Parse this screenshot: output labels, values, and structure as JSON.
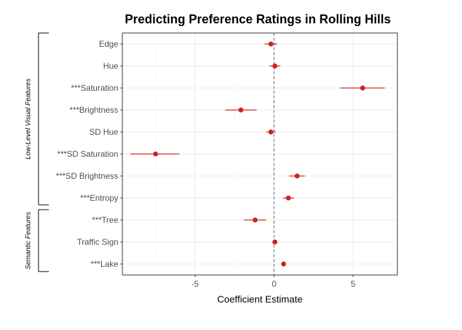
{
  "chart_data": {
    "type": "scatter",
    "subtype": "coefficient-plot",
    "title": "Predicting Preference Ratings in Rolling Hills",
    "xlabel": "Coefficient Estimate",
    "ylabel": "",
    "xlim": [
      -9.6,
      7.8
    ],
    "xticks": [
      -5,
      0,
      5
    ],
    "xtick_labels": [
      "-5",
      "0",
      "5"
    ],
    "reference_line": 0,
    "grid": true,
    "point_color": "#cc2222",
    "terms": [
      {
        "label": "Edge",
        "estimate": -0.2,
        "low": -0.6,
        "high": 0.2
      },
      {
        "label": "Hue",
        "estimate": 0.05,
        "low": -0.3,
        "high": 0.4
      },
      {
        "label": "***Saturation",
        "estimate": 5.6,
        "low": 4.2,
        "high": 7.0
      },
      {
        "label": "***Brightness",
        "estimate": -2.1,
        "low": -3.1,
        "high": -1.1
      },
      {
        "label": "SD Hue",
        "estimate": -0.2,
        "low": -0.5,
        "high": 0.1
      },
      {
        "label": "***SD Saturation",
        "estimate": -7.5,
        "low": -9.1,
        "high": -6.0
      },
      {
        "label": "***SD Brightness",
        "estimate": 1.45,
        "low": 0.95,
        "high": 1.95
      },
      {
        "label": "***Entropy",
        "estimate": 0.9,
        "low": 0.55,
        "high": 1.25
      },
      {
        "label": "***Tree",
        "estimate": -1.2,
        "low": -1.9,
        "high": -0.5
      },
      {
        "label": "Traffic Sign",
        "estimate": 0.05,
        "low": -0.1,
        "high": 0.2
      },
      {
        "label": "***Lake",
        "estimate": 0.6,
        "low": 0.45,
        "high": 0.75
      }
    ],
    "groups": [
      {
        "label": "Low-Level Visual Features",
        "first_term": 0,
        "last_term": 7
      },
      {
        "label": "Semantic Features",
        "first_term": 8,
        "last_term": 10
      }
    ]
  }
}
